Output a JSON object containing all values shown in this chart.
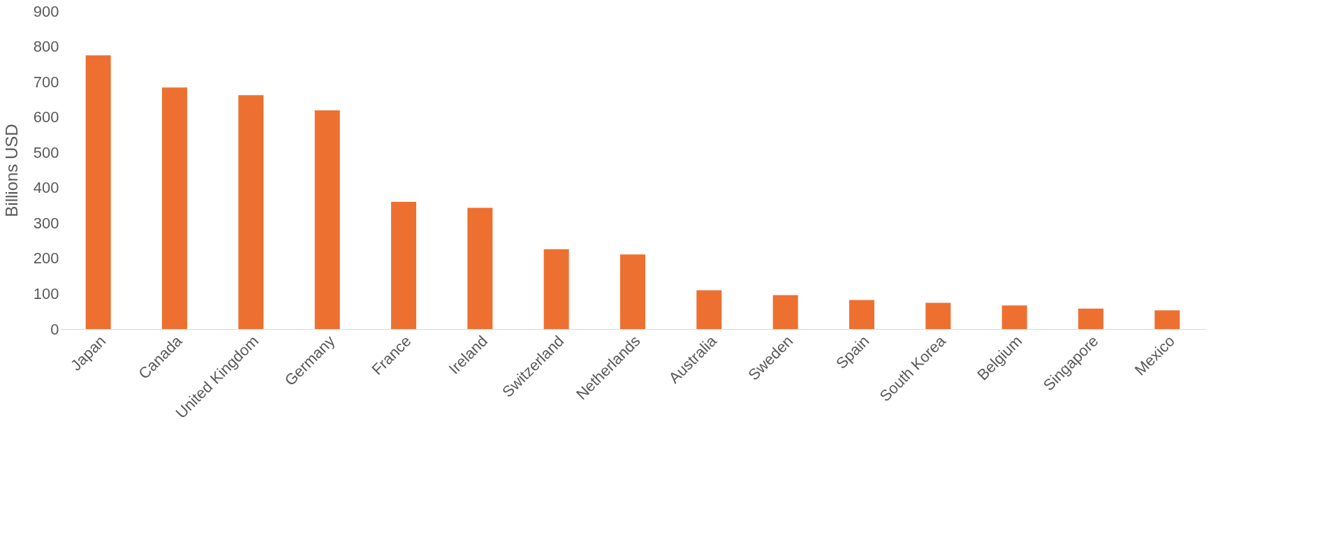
{
  "chart_data": {
    "type": "bar",
    "ylabel": "Billions USD",
    "categories": [
      "Japan",
      "Canada",
      "United Kingdom",
      "Germany",
      "France",
      "Ireland",
      "Switzerland",
      "Netherlands",
      "Australia",
      "Sweden",
      "Spain",
      "South Korea",
      "Belgium",
      "Singapore",
      "Mexico"
    ],
    "values": [
      775,
      684,
      662,
      619,
      360,
      343,
      226,
      211,
      110,
      96,
      82,
      74,
      67,
      58,
      53
    ],
    "color": "#ed7031",
    "ylim": [
      0,
      900
    ],
    "yticks": [
      0,
      100,
      200,
      300,
      400,
      500,
      600,
      700,
      800,
      900
    ],
    "grid": false
  }
}
